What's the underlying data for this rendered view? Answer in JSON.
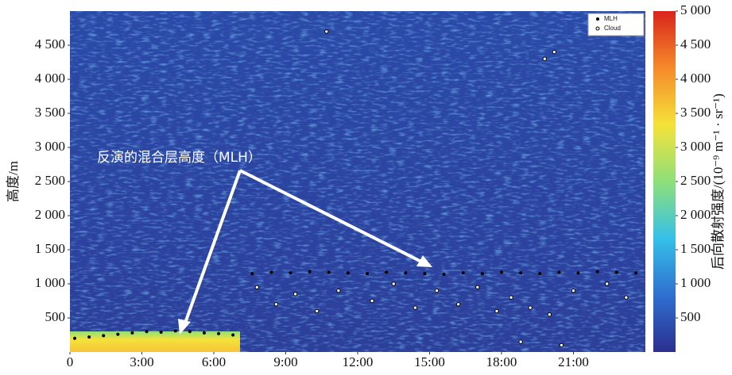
{
  "chart_data": {
    "type": "scatter",
    "annotation": "反演的混合层高度（MLH）",
    "y_label": "高度/m",
    "colorbar_label": "后向散射强度/(10⁻⁹ m⁻¹ · sr⁻¹)",
    "xlim": [
      0,
      24
    ],
    "ylim": [
      0,
      5000
    ],
    "xticks": [
      0,
      {
        "value": 3,
        "label": "3:00"
      },
      {
        "value": 6,
        "label": "6:00"
      },
      {
        "value": 9,
        "label": "9:00"
      },
      {
        "value": 12,
        "label": "12:00"
      },
      {
        "value": 15,
        "label": "15:00"
      },
      {
        "value": 18,
        "label": "18:00"
      },
      {
        "value": 21,
        "label": "21:00"
      }
    ],
    "yticks": [
      500,
      {
        "value": 1000,
        "label": "1 000"
      },
      {
        "value": 1500,
        "label": "1 500"
      },
      {
        "value": 2000,
        "label": "2 000"
      },
      {
        "value": 2500,
        "label": "2 500"
      },
      {
        "value": 3000,
        "label": "3 000"
      },
      {
        "value": 3500,
        "label": "3 500"
      },
      {
        "value": 4000,
        "label": "4 000"
      },
      {
        "value": 4500,
        "label": "4 500"
      }
    ],
    "clim": [
      0,
      5000
    ],
    "cticks": [
      500,
      {
        "value": 1000,
        "label": "1 000"
      },
      {
        "value": 1500,
        "label": "1 500"
      },
      {
        "value": 2000,
        "label": "2 000"
      },
      {
        "value": 2500,
        "label": "2 500"
      },
      {
        "value": 3000,
        "label": "3 000"
      },
      {
        "value": 3500,
        "label": "3 500"
      },
      {
        "value": 4000,
        "label": "4 000"
      },
      {
        "value": 4500,
        "label": "4 500"
      },
      {
        "value": 5000,
        "label": "5 000"
      }
    ],
    "colormap": [
      "#2b2f8f",
      "#2f6fd0",
      "#36c0e8",
      "#8ee07a",
      "#f5e23a",
      "#f58a2a",
      "#d9241c"
    ],
    "legend_position": "upper right",
    "series": [
      {
        "name": "MLH",
        "color": "#000000",
        "x": [
          0.2,
          0.8,
          1.4,
          2.0,
          2.6,
          3.2,
          3.8,
          4.4,
          5.0,
          5.6,
          6.2,
          6.8,
          7.6,
          8.4,
          9.2,
          10.0,
          10.8,
          11.6,
          12.4,
          13.2,
          14.0,
          14.8,
          15.6,
          16.4,
          17.2,
          18.0,
          18.8,
          19.6,
          20.4,
          21.2,
          22.0,
          22.8,
          23.6
        ],
        "y": [
          200,
          220,
          240,
          260,
          280,
          300,
          290,
          310,
          300,
          280,
          270,
          250,
          1150,
          1170,
          1160,
          1180,
          1170,
          1160,
          1150,
          1170,
          1160,
          1150,
          1140,
          1160,
          1150,
          1170,
          1160,
          1150,
          1170,
          1160,
          1180,
          1170,
          1160
        ]
      },
      {
        "name": "Cloud",
        "color": "#ffffff",
        "x": [
          7.8,
          8.6,
          9.4,
          10.3,
          11.2,
          12.6,
          13.5,
          14.4,
          15.3,
          16.2,
          17.0,
          17.8,
          18.4,
          19.2,
          20.0,
          21.0,
          22.4,
          23.2,
          10.7,
          19.8,
          20.2,
          18.8,
          20.5
        ],
        "y": [
          950,
          700,
          850,
          600,
          900,
          750,
          1000,
          650,
          900,
          700,
          950,
          600,
          800,
          650,
          550,
          900,
          1000,
          800,
          4700,
          4300,
          4400,
          150,
          100
        ]
      }
    ]
  }
}
